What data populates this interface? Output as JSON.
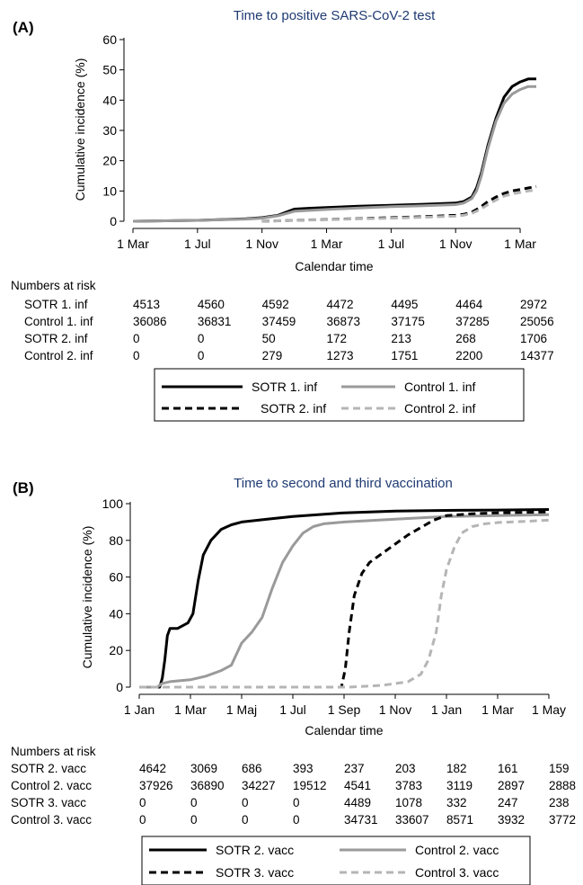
{
  "colors": {
    "title": "#1f3b73",
    "black": "#000000",
    "gray": "#9a9a9a",
    "light_gray": "#b5b5b5"
  },
  "chart_data": [
    {
      "type": "line",
      "panel_label": "(A)",
      "title": "Time to positive SARS-CoV-2 test",
      "xlabel": "Calendar time",
      "ylabel": "Cumulative incidence (%)",
      "xlim": [
        0,
        25
      ],
      "ylim": [
        0,
        60
      ],
      "x_unit_note": "months since 1 Mar 2020",
      "x_ticks": [
        0,
        4,
        8,
        12,
        16,
        20,
        24
      ],
      "x_tick_labels": [
        "1 Mar",
        "1 Jul",
        "1 Nov",
        "1 Mar",
        "1 Jul",
        "1 Nov",
        "1 Mar"
      ],
      "y_ticks": [
        0,
        10,
        20,
        30,
        40,
        50,
        60
      ],
      "series": [
        {
          "name": "SOTR 1. inf",
          "color": "#000000",
          "dashed": false,
          "width": 3,
          "x": [
            0,
            4,
            7,
            8,
            9,
            10,
            11,
            12,
            14,
            16,
            18,
            20,
            20.5,
            21,
            21.3,
            21.6,
            22,
            22.5,
            23,
            23.5,
            24,
            24.5,
            25
          ],
          "y": [
            0,
            0.3,
            0.8,
            1.2,
            2,
            4,
            4.3,
            4.5,
            5,
            5.3,
            5.6,
            6,
            6.5,
            8,
            11,
            16,
            25,
            34,
            41,
            44.5,
            46,
            47,
            47
          ]
        },
        {
          "name": "Control 1. inf",
          "color": "#9a9a9a",
          "dashed": false,
          "width": 3,
          "x": [
            0,
            4,
            7,
            8,
            9,
            10,
            11,
            12,
            14,
            16,
            18,
            20,
            20.5,
            21,
            21.3,
            21.6,
            22,
            22.5,
            23,
            23.5,
            24,
            24.5,
            25
          ],
          "y": [
            0,
            0.3,
            0.7,
            1.0,
            1.8,
            3.3,
            3.6,
            3.9,
            4.4,
            4.8,
            5.1,
            5.5,
            6,
            7.5,
            10,
            15,
            24,
            33,
            39,
            42,
            43.5,
            44.5,
            44.5
          ]
        },
        {
          "name": "SOTR 2. inf",
          "color": "#000000",
          "dashed": true,
          "width": 3,
          "x": [
            8,
            10,
            12,
            14,
            16,
            18,
            20,
            20.5,
            21,
            21.5,
            22,
            22.5,
            23,
            23.5,
            24,
            24.5,
            25
          ],
          "y": [
            0,
            0.3,
            0.6,
            0.9,
            1.2,
            1.5,
            2,
            2.3,
            3,
            4.5,
            6.5,
            8,
            9.2,
            10,
            10.5,
            11,
            11.5
          ]
        },
        {
          "name": "Control 2. inf",
          "color": "#b5b5b5",
          "dashed": true,
          "width": 3,
          "x": [
            8,
            10,
            12,
            14,
            16,
            18,
            20,
            20.5,
            21,
            21.5,
            22,
            22.5,
            23,
            23.5,
            24,
            24.5,
            25
          ],
          "y": [
            0,
            0.3,
            0.5,
            0.8,
            1.0,
            1.3,
            1.7,
            2,
            2.6,
            3.8,
            5.5,
            7,
            8.3,
            9,
            9.5,
            10,
            10.3
          ]
        }
      ],
      "risk_table": {
        "title": "Numbers at risk",
        "rows": [
          {
            "label": "SOTR 1. inf",
            "values": [
              "4513",
              "4560",
              "4592",
              "4472",
              "4495",
              "4464",
              "2972"
            ]
          },
          {
            "label": "Control 1. inf",
            "values": [
              "36086",
              "36831",
              "37459",
              "36873",
              "37175",
              "37285",
              "25056"
            ]
          },
          {
            "label": "SOTR 2. inf",
            "values": [
              "0",
              "0",
              "50",
              "172",
              "213",
              "268",
              "1706"
            ]
          },
          {
            "label": "Control 2. inf",
            "values": [
              "0",
              "0",
              "279",
              "1273",
              "1751",
              "2200",
              "14377"
            ]
          }
        ]
      },
      "legend": [
        "SOTR 1. inf",
        "Control 1. inf",
        "SOTR 2. inf",
        "Control 2. inf"
      ]
    },
    {
      "type": "line",
      "panel_label": "(B)",
      "title": "Time to second and third vaccination",
      "xlabel": "Calendar time",
      "ylabel": "Cumulative incidence (%)",
      "xlim": [
        0,
        16
      ],
      "ylim": [
        0,
        100
      ],
      "x_unit_note": "months since 1 Jan 2021",
      "x_ticks": [
        0,
        2,
        4,
        6,
        8,
        10,
        12,
        14,
        16
      ],
      "x_tick_labels": [
        "1 Jan",
        "1 Mar",
        "1 Maj",
        "1 Jul",
        "1 Sep",
        "1 Nov",
        "1 Jan",
        "1 Mar",
        "1 May"
      ],
      "y_ticks": [
        0,
        20,
        40,
        60,
        80,
        100
      ],
      "series": [
        {
          "name": "SOTR 2. vacc",
          "color": "#000000",
          "dashed": false,
          "width": 3,
          "x": [
            0,
            0.8,
            0.9,
            1.0,
            1.1,
            1.2,
            1.5,
            1.9,
            2.1,
            2.3,
            2.5,
            2.8,
            3.2,
            3.6,
            4.0,
            5.0,
            6.0,
            8.0,
            10.0,
            12.0,
            14.0,
            16.0
          ],
          "y": [
            0,
            0,
            5,
            15,
            28,
            32,
            32,
            35,
            40,
            58,
            72,
            80,
            86,
            88.5,
            90,
            91.5,
            93,
            95,
            96,
            96.3,
            96.5,
            96.8
          ]
        },
        {
          "name": "Control 2. vacc",
          "color": "#9a9a9a",
          "dashed": false,
          "width": 3,
          "x": [
            0,
            0.7,
            0.9,
            1.2,
            2.0,
            2.6,
            3.2,
            3.6,
            4.0,
            4.4,
            4.8,
            5.2,
            5.6,
            6.0,
            6.4,
            6.8,
            7.2,
            8.0,
            10.0,
            12.0,
            14.0,
            16.0
          ],
          "y": [
            0,
            0,
            2,
            3,
            4,
            6,
            9,
            12,
            24,
            30,
            38,
            54,
            68,
            77,
            84,
            87.5,
            89,
            90,
            91.5,
            93,
            93.5,
            94
          ]
        },
        {
          "name": "SOTR 3. vacc",
          "color": "#000000",
          "dashed": true,
          "width": 3,
          "x": [
            0,
            7.9,
            8.05,
            8.2,
            8.4,
            8.7,
            9.0,
            9.5,
            10.0,
            10.5,
            11.0,
            11.5,
            12.0,
            13.0,
            14.0,
            16.0
          ],
          "y": [
            0,
            0,
            10,
            30,
            50,
            62,
            68,
            73,
            78,
            83,
            87,
            91,
            93.5,
            94.5,
            95,
            95.5
          ]
        },
        {
          "name": "Control 3. vacc",
          "color": "#b5b5b5",
          "dashed": true,
          "width": 3,
          "x": [
            0,
            8.2,
            9.5,
            10.5,
            11.0,
            11.3,
            11.6,
            11.8,
            12.0,
            12.3,
            12.6,
            13.0,
            13.5,
            14.0,
            15.0,
            16.0
          ],
          "y": [
            0,
            0,
            1,
            3,
            7,
            15,
            30,
            50,
            64,
            76,
            84,
            87.5,
            89,
            89.7,
            90.3,
            91
          ]
        }
      ],
      "risk_table": {
        "title": "Numbers at risk",
        "rows": [
          {
            "label": "SOTR 2. vacc",
            "values": [
              "4642",
              "3069",
              "686",
              "393",
              "237",
              "203",
              "182",
              "161",
              "159"
            ]
          },
          {
            "label": "Control 2. vacc",
            "values": [
              "37926",
              "36890",
              "34227",
              "19512",
              "4541",
              "3783",
              "3119",
              "2897",
              "2888"
            ]
          },
          {
            "label": "SOTR 3. vacc",
            "values": [
              "0",
              "0",
              "0",
              "0",
              "4489",
              "1078",
              "332",
              "247",
              "238"
            ]
          },
          {
            "label": "Control 3. vacc",
            "values": [
              "0",
              "0",
              "0",
              "0",
              "34731",
              "33607",
              "8571",
              "3932",
              "3772"
            ]
          }
        ]
      },
      "legend": [
        "SOTR 2. vacc",
        "Control 2. vacc",
        "SOTR 3. vacc",
        "Control 3. vacc"
      ]
    }
  ]
}
